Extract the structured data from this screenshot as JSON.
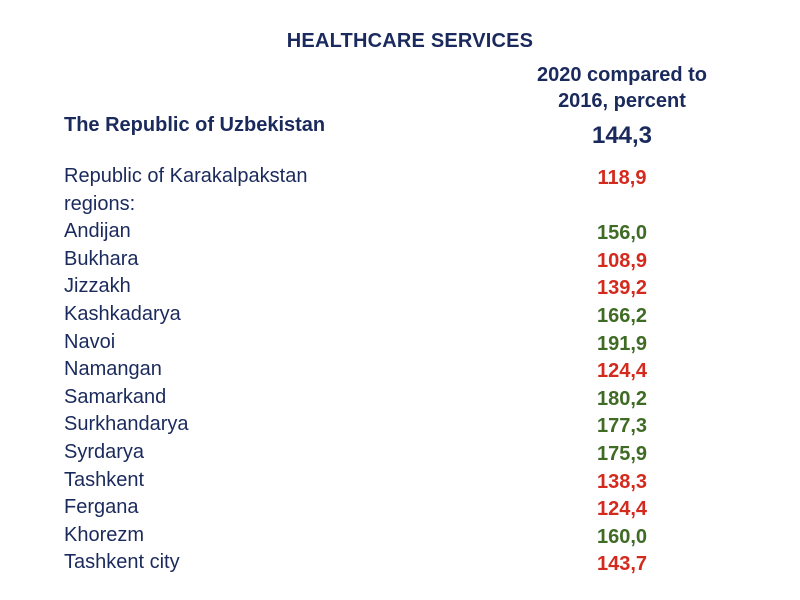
{
  "title": "HEALTHCARE SERVICES",
  "column_header": {
    "line1": "2020 compared to",
    "line2": "2016, percent"
  },
  "country": {
    "label": "The Republic of Uzbekistan",
    "value": "144,3"
  },
  "colors": {
    "navy": "#1b2a5c",
    "above": "#3f6b24",
    "below": "#d42a1e"
  },
  "rows": [
    {
      "label": "Republic of Karakalpakstan",
      "value": "118,9",
      "status": "below"
    },
    {
      "label": "regions:",
      "value": "",
      "status": ""
    },
    {
      "label": "Andijan",
      "value": "156,0",
      "status": "above"
    },
    {
      "label": "Bukhara",
      "value": "108,9",
      "status": "below"
    },
    {
      "label": "Jizzakh",
      "value": "139,2",
      "status": "below"
    },
    {
      "label": "Kashkadarya",
      "value": "166,2",
      "status": "above"
    },
    {
      "label": "Navoi",
      "value": "191,9",
      "status": "above"
    },
    {
      "label": "Namangan",
      "value": "124,4",
      "status": "below"
    },
    {
      "label": "Samarkand",
      "value": "180,2",
      "status": "above"
    },
    {
      "label": "Surkhandarya",
      "value": "177,3",
      "status": "above"
    },
    {
      "label": "Syrdarya",
      "value": "175,9",
      "status": "above"
    },
    {
      "label": "Tashkent",
      "value": "138,3",
      "status": "below"
    },
    {
      "label": "Fergana",
      "value": "124,4",
      "status": "below"
    },
    {
      "label": "Khorezm",
      "value": "160,0",
      "status": "above"
    },
    {
      "label": "Tashkent city",
      "value": "143,7",
      "status": "below"
    }
  ]
}
